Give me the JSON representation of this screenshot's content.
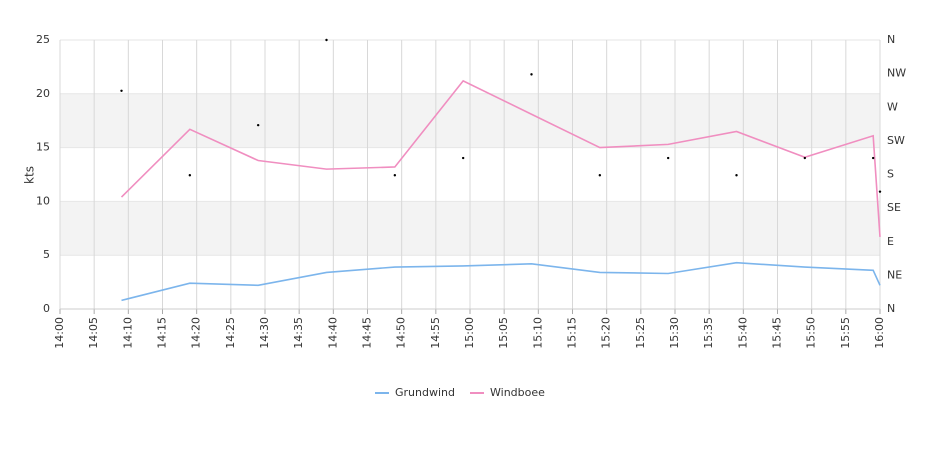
{
  "chart_data": {
    "type": "line",
    "y_label": "kts",
    "x": [
      "14:09",
      "14:19",
      "14:29",
      "14:39",
      "14:49",
      "14:59",
      "15:09",
      "15:19",
      "15:29",
      "15:39",
      "15:49",
      "15:59",
      "16:00"
    ],
    "xlim": [
      "14:00",
      "16:00"
    ],
    "xticks": [
      "14:00",
      "14:05",
      "14:10",
      "14:15",
      "14:20",
      "14:25",
      "14:30",
      "14:35",
      "14:40",
      "14:45",
      "14:50",
      "14:55",
      "15:00",
      "15:05",
      "15:10",
      "15:15",
      "15:20",
      "15:25",
      "15:30",
      "15:35",
      "15:40",
      "15:45",
      "15:50",
      "15:55",
      "16:00"
    ],
    "ylim": [
      0,
      25
    ],
    "yticks": [
      0,
      5,
      10,
      15,
      20,
      25
    ],
    "y2lim": [
      0,
      360
    ],
    "y2ticks": [
      {
        "value": 0,
        "label": "N"
      },
      {
        "value": 45,
        "label": "NE"
      },
      {
        "value": 90,
        "label": "E"
      },
      {
        "value": 135,
        "label": "SE"
      },
      {
        "value": 180,
        "label": "S"
      },
      {
        "value": 225,
        "label": "SW"
      },
      {
        "value": 270,
        "label": "W"
      },
      {
        "value": 315,
        "label": "NW"
      },
      {
        "value": 360,
        "label": "N"
      }
    ],
    "plot_bands": [
      [
        5,
        10
      ],
      [
        15,
        20
      ]
    ],
    "grid": true,
    "legend": "bottom",
    "series": [
      {
        "name": "Grundwind",
        "color": "#7cb5ec",
        "values": [
          0.8,
          2.4,
          2.2,
          3.4,
          3.9,
          4.0,
          4.2,
          3.4,
          3.3,
          4.3,
          3.9,
          3.6,
          2.2
        ]
      },
      {
        "name": "Windboee",
        "color": "#f08ec0",
        "values": [
          10.4,
          16.7,
          13.8,
          13.0,
          13.2,
          21.2,
          18.1,
          15.0,
          15.3,
          16.5,
          14.1,
          16.1,
          6.7
        ]
      },
      {
        "type": "scatter",
        "axis": "y2",
        "color": "#000000",
        "values": [
          292,
          179,
          246,
          360,
          179,
          202,
          314,
          179,
          202,
          179,
          202,
          202,
          157
        ]
      }
    ]
  }
}
